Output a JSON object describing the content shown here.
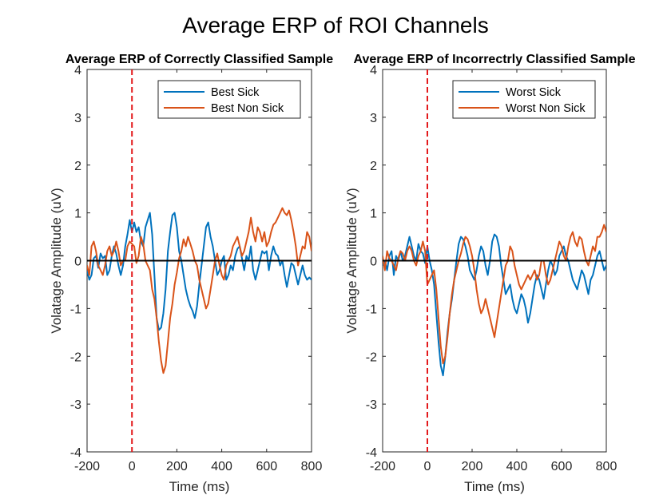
{
  "figure": {
    "title": "Average ERP of ROI Channels"
  },
  "colors": {
    "blue": "#0072BD",
    "orange": "#D95319",
    "stim": "#E31A1C",
    "zero": "#000000",
    "axis": "#262626"
  },
  "chart_data": [
    {
      "type": "line",
      "title": "Average ERP of Correctly Classified Sample",
      "xlabel": "Time (ms)",
      "ylabel": "Volatage Amplitude (uV)",
      "xlim": [
        -200,
        800
      ],
      "ylim": [
        -4,
        4
      ],
      "xticks": [
        -200,
        0,
        200,
        400,
        600,
        800
      ],
      "yticks": [
        -4,
        -3,
        -2,
        -1,
        0,
        1,
        2,
        3,
        4
      ],
      "xtick_labels": [
        "-200",
        "0",
        "200",
        "400",
        "600",
        "800"
      ],
      "ytick_labels": [
        "-4",
        "-3",
        "-2",
        "-1",
        "0",
        "1",
        "2",
        "3",
        "4"
      ],
      "grid": false,
      "legend": "top-right",
      "reference_lines": {
        "horizontal_zero": 0,
        "stimulus_onset_x": 0
      },
      "series": [
        {
          "name": "Best Sick",
          "color": "#0072BD",
          "x": [
            -200,
            -190,
            -180,
            -170,
            -160,
            -150,
            -140,
            -130,
            -120,
            -110,
            -100,
            -90,
            -80,
            -70,
            -60,
            -50,
            -40,
            -30,
            -20,
            -10,
            0,
            10,
            20,
            30,
            40,
            50,
            60,
            70,
            80,
            90,
            100,
            110,
            120,
            130,
            140,
            150,
            160,
            170,
            180,
            190,
            200,
            210,
            220,
            230,
            240,
            250,
            260,
            270,
            280,
            290,
            300,
            310,
            320,
            330,
            340,
            350,
            360,
            370,
            380,
            390,
            400,
            410,
            420,
            430,
            440,
            450,
            460,
            470,
            480,
            490,
            500,
            510,
            520,
            530,
            540,
            550,
            560,
            570,
            580,
            590,
            600,
            610,
            620,
            630,
            640,
            650,
            660,
            670,
            680,
            690,
            700,
            710,
            720,
            730,
            740,
            750,
            760,
            770,
            780,
            790,
            800
          ],
          "y": [
            -0.2,
            -0.4,
            -0.3,
            0.05,
            0.1,
            -0.15,
            0.15,
            0.05,
            0.1,
            -0.3,
            -0.2,
            0.1,
            0.3,
            0.15,
            -0.1,
            -0.3,
            -0.1,
            0.3,
            0.55,
            0.85,
            0.6,
            0.8,
            0.6,
            0.7,
            0.4,
            0.3,
            0.7,
            0.85,
            1.0,
            0.55,
            -0.3,
            -1.2,
            -1.45,
            -1.4,
            -1.1,
            -0.6,
            0.2,
            0.6,
            0.95,
            1.0,
            0.7,
            0.2,
            0.0,
            -0.3,
            -0.6,
            -0.8,
            -0.95,
            -1.05,
            -1.2,
            -0.95,
            -0.5,
            -0.1,
            0.3,
            0.7,
            0.8,
            0.5,
            0.3,
            0.0,
            -0.3,
            -0.2,
            0.0,
            0.1,
            -0.4,
            -0.3,
            -0.1,
            -0.2,
            0.1,
            0.25,
            0.3,
            0.05,
            -0.2,
            0.1,
            0.0,
            0.3,
            -0.2,
            -0.4,
            -0.2,
            0.0,
            0.2,
            0.15,
            0.2,
            -0.2,
            0.1,
            0.3,
            0.15,
            0.1,
            -0.1,
            0.0,
            -0.3,
            -0.55,
            -0.3,
            -0.05,
            -0.1,
            -0.3,
            -0.5,
            -0.3,
            -0.1,
            -0.3,
            -0.4,
            -0.35,
            -0.4
          ]
        },
        {
          "name": "Best Non Sick",
          "color": "#D95319",
          "x": [
            -200,
            -190,
            -180,
            -170,
            -160,
            -150,
            -140,
            -130,
            -120,
            -110,
            -100,
            -90,
            -80,
            -70,
            -60,
            -50,
            -40,
            -30,
            -20,
            -10,
            0,
            10,
            20,
            30,
            40,
            50,
            60,
            70,
            80,
            90,
            100,
            110,
            120,
            130,
            140,
            150,
            160,
            170,
            180,
            190,
            200,
            210,
            220,
            230,
            240,
            250,
            260,
            270,
            280,
            290,
            300,
            310,
            320,
            330,
            340,
            350,
            360,
            370,
            380,
            390,
            400,
            410,
            420,
            430,
            440,
            450,
            460,
            470,
            480,
            490,
            500,
            510,
            520,
            530,
            540,
            550,
            560,
            570,
            580,
            590,
            600,
            610,
            620,
            630,
            640,
            650,
            660,
            670,
            680,
            690,
            700,
            710,
            720,
            730,
            740,
            750,
            760,
            770,
            780,
            790,
            800
          ],
          "y": [
            -0.1,
            -0.3,
            0.3,
            0.4,
            0.2,
            -0.1,
            -0.2,
            -0.3,
            -0.1,
            0.2,
            0.3,
            0.1,
            0.2,
            0.4,
            0.2,
            -0.1,
            0.0,
            0.0,
            0.3,
            0.4,
            0.35,
            0.3,
            -0.05,
            0.1,
            0.5,
            0.35,
            0.0,
            -0.1,
            -0.2,
            -0.6,
            -0.8,
            -1.2,
            -1.7,
            -2.1,
            -2.35,
            -2.2,
            -1.7,
            -1.2,
            -0.9,
            -0.5,
            -0.25,
            0.05,
            0.2,
            0.45,
            0.3,
            0.5,
            0.35,
            0.2,
            0.0,
            -0.1,
            -0.4,
            -0.6,
            -0.8,
            -1.0,
            -0.9,
            -0.6,
            -0.3,
            0.0,
            0.15,
            -0.1,
            -0.3,
            -0.4,
            -0.1,
            0.0,
            0.1,
            0.3,
            0.4,
            0.5,
            0.3,
            0.1,
            0.2,
            0.4,
            0.6,
            0.9,
            0.6,
            0.4,
            0.7,
            0.6,
            0.4,
            0.6,
            0.3,
            0.4,
            0.6,
            0.75,
            0.8,
            0.9,
            1.0,
            1.1,
            1.0,
            0.95,
            1.05,
            0.85,
            0.6,
            0.3,
            -0.1,
            0.1,
            0.3,
            0.25,
            0.6,
            0.5,
            0.2
          ]
        }
      ]
    },
    {
      "type": "line",
      "title": "Average ERP of Incorrectrly Classified Sample",
      "xlabel": "Time (ms)",
      "ylabel": "Volatage Amplitude (uV)",
      "xlim": [
        -200,
        800
      ],
      "ylim": [
        -4,
        4
      ],
      "xticks": [
        -200,
        0,
        200,
        400,
        600,
        800
      ],
      "yticks": [
        -4,
        -3,
        -2,
        -1,
        0,
        1,
        2,
        3,
        4
      ],
      "xtick_labels": [
        "-200",
        "0",
        "200",
        "400",
        "600",
        "800"
      ],
      "ytick_labels": [
        "-4",
        "-3",
        "-2",
        "-1",
        "0",
        "1",
        "2",
        "3",
        "4"
      ],
      "grid": false,
      "legend": "top-right",
      "reference_lines": {
        "horizontal_zero": 0,
        "stimulus_onset_x": 0
      },
      "series": [
        {
          "name": "Worst Sick",
          "color": "#0072BD",
          "x": [
            -200,
            -190,
            -180,
            -170,
            -160,
            -150,
            -140,
            -130,
            -120,
            -110,
            -100,
            -90,
            -80,
            -70,
            -60,
            -50,
            -40,
            -30,
            -20,
            -10,
            0,
            10,
            20,
            30,
            40,
            50,
            60,
            70,
            80,
            90,
            100,
            110,
            120,
            130,
            140,
            150,
            160,
            170,
            180,
            190,
            200,
            210,
            220,
            230,
            240,
            250,
            260,
            270,
            280,
            290,
            300,
            310,
            320,
            330,
            340,
            350,
            360,
            370,
            380,
            390,
            400,
            410,
            420,
            430,
            440,
            450,
            460,
            470,
            480,
            490,
            500,
            510,
            520,
            530,
            540,
            550,
            560,
            570,
            580,
            590,
            600,
            610,
            620,
            630,
            640,
            650,
            660,
            670,
            680,
            690,
            700,
            710,
            720,
            730,
            740,
            750,
            760,
            770,
            780,
            790,
            800
          ],
          "y": [
            -0.1,
            0.0,
            -0.2,
            0.1,
            0.2,
            -0.3,
            0.1,
            0.0,
            0.2,
            0.0,
            0.1,
            0.3,
            0.5,
            0.3,
            0.1,
            0.0,
            0.35,
            0.2,
            0.15,
            -0.05,
            0.3,
            0.0,
            -0.2,
            -0.5,
            -1.1,
            -1.7,
            -2.2,
            -2.4,
            -2.0,
            -1.5,
            -1.1,
            -0.8,
            -0.4,
            0.0,
            0.35,
            0.5,
            0.45,
            0.3,
            0.1,
            -0.2,
            -0.3,
            -0.4,
            -0.2,
            0.1,
            0.3,
            0.2,
            -0.1,
            -0.3,
            0.0,
            0.4,
            0.55,
            0.5,
            0.3,
            -0.1,
            -0.4,
            -0.7,
            -0.6,
            -0.5,
            -0.8,
            -1.0,
            -1.1,
            -0.9,
            -0.7,
            -0.8,
            -1.0,
            -1.3,
            -1.1,
            -0.8,
            -0.5,
            -0.3,
            -0.4,
            -0.6,
            -0.8,
            -0.5,
            -0.2,
            0.0,
            -0.1,
            -0.3,
            -0.2,
            0.1,
            0.2,
            0.3,
            0.1,
            0.0,
            -0.2,
            -0.4,
            -0.5,
            -0.6,
            -0.4,
            -0.2,
            -0.3,
            -0.5,
            -0.7,
            -0.4,
            -0.3,
            -0.1,
            0.1,
            0.2,
            0.0,
            -0.2,
            -0.1
          ]
        },
        {
          "name": "Worst Non Sick",
          "color": "#D95319",
          "x": [
            -200,
            -190,
            -180,
            -170,
            -160,
            -150,
            -140,
            -130,
            -120,
            -110,
            -100,
            -90,
            -80,
            -70,
            -60,
            -50,
            -40,
            -30,
            -20,
            -10,
            0,
            10,
            20,
            30,
            40,
            50,
            60,
            70,
            80,
            90,
            100,
            110,
            120,
            130,
            140,
            150,
            160,
            170,
            180,
            190,
            200,
            210,
            220,
            230,
            240,
            250,
            260,
            270,
            280,
            290,
            300,
            310,
            320,
            330,
            340,
            350,
            360,
            370,
            380,
            390,
            400,
            410,
            420,
            430,
            440,
            450,
            460,
            470,
            480,
            490,
            500,
            510,
            520,
            530,
            540,
            550,
            560,
            570,
            580,
            590,
            600,
            610,
            620,
            630,
            640,
            650,
            660,
            670,
            680,
            690,
            700,
            710,
            720,
            730,
            740,
            750,
            760,
            770,
            780,
            790,
            800
          ],
          "y": [
            0.1,
            -0.2,
            0.2,
            0.05,
            0.0,
            -0.1,
            -0.2,
            0.05,
            0.2,
            0.15,
            0.0,
            0.2,
            0.3,
            0.2,
            0.0,
            -0.1,
            0.1,
            0.2,
            0.4,
            0.2,
            -0.5,
            -0.4,
            -0.3,
            -0.2,
            -0.6,
            -1.2,
            -1.8,
            -2.15,
            -2.0,
            -1.6,
            -1.1,
            -0.7,
            -0.4,
            -0.2,
            0.0,
            0.15,
            0.35,
            0.5,
            0.45,
            0.3,
            0.1,
            -0.2,
            -0.6,
            -0.9,
            -1.1,
            -1.0,
            -0.8,
            -1.0,
            -1.2,
            -1.4,
            -1.6,
            -1.3,
            -1.0,
            -0.7,
            -0.4,
            -0.1,
            0.0,
            0.3,
            0.2,
            -0.1,
            -0.3,
            -0.5,
            -0.6,
            -0.5,
            -0.4,
            -0.3,
            -0.4,
            -0.3,
            -0.2,
            -0.4,
            -0.3,
            0.0,
            0.0,
            -0.3,
            -0.5,
            -0.4,
            -0.2,
            0.0,
            0.2,
            0.4,
            0.3,
            0.1,
            0.0,
            0.3,
            0.5,
            0.6,
            0.4,
            0.3,
            0.5,
            0.45,
            0.2,
            0.0,
            -0.1,
            0.1,
            0.3,
            0.2,
            0.5,
            0.5,
            0.6,
            0.75,
            0.6
          ]
        }
      ]
    }
  ]
}
